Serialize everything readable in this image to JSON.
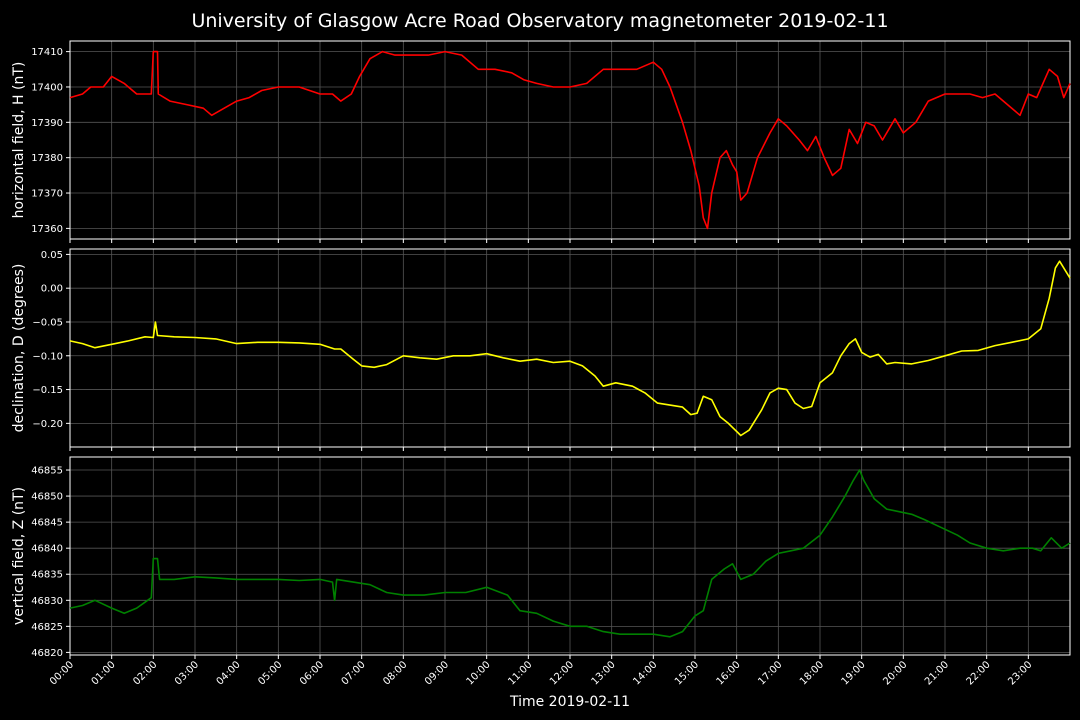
{
  "chart_data": {
    "type": "line",
    "title": "University of Glasgow Acre Road Observatory magnetometer 2019-02-11",
    "xlabel": "Time 2019-02-11",
    "x_tick_labels": [
      "00:00",
      "01:00",
      "02:00",
      "03:00",
      "04:00",
      "05:00",
      "06:00",
      "07:00",
      "08:00",
      "09:00",
      "10:00",
      "11:00",
      "12:00",
      "13:00",
      "14:00",
      "15:00",
      "16:00",
      "17:00",
      "18:00",
      "19:00",
      "20:00",
      "21:00",
      "22:00",
      "23:00"
    ],
    "xlim_hours": [
      0,
      24
    ],
    "grid": true,
    "panels": [
      {
        "name": "horizontal-field",
        "ylabel": "horizontal field, H (nT)",
        "color": "#ff0000",
        "ylim": [
          17357,
          17413
        ],
        "yticks": [
          17360,
          17370,
          17380,
          17390,
          17400,
          17410
        ],
        "ytick_labels": [
          "17360",
          "17370",
          "17380",
          "17390",
          "17400",
          "17410"
        ],
        "points": [
          [
            0,
            17397
          ],
          [
            0.3,
            17398
          ],
          [
            0.5,
            17400
          ],
          [
            0.8,
            17400
          ],
          [
            1.0,
            17403
          ],
          [
            1.3,
            17401
          ],
          [
            1.6,
            17398
          ],
          [
            1.95,
            17398
          ],
          [
            2.0,
            17410
          ],
          [
            2.1,
            17410
          ],
          [
            2.12,
            17398
          ],
          [
            2.4,
            17396
          ],
          [
            2.8,
            17395
          ],
          [
            3.2,
            17394
          ],
          [
            3.4,
            17392
          ],
          [
            3.7,
            17394
          ],
          [
            4.0,
            17396
          ],
          [
            4.3,
            17397
          ],
          [
            4.6,
            17399
          ],
          [
            5.0,
            17400
          ],
          [
            5.5,
            17400
          ],
          [
            6.0,
            17398
          ],
          [
            6.3,
            17398
          ],
          [
            6.5,
            17396
          ],
          [
            6.75,
            17398
          ],
          [
            6.95,
            17403
          ],
          [
            7.2,
            17408
          ],
          [
            7.5,
            17410
          ],
          [
            7.8,
            17409
          ],
          [
            8.2,
            17409
          ],
          [
            8.6,
            17409
          ],
          [
            9.0,
            17410
          ],
          [
            9.4,
            17409
          ],
          [
            9.8,
            17405
          ],
          [
            10.2,
            17405
          ],
          [
            10.6,
            17404
          ],
          [
            10.9,
            17402
          ],
          [
            11.2,
            17401
          ],
          [
            11.6,
            17400
          ],
          [
            12.0,
            17400
          ],
          [
            12.4,
            17401
          ],
          [
            12.8,
            17405
          ],
          [
            13.2,
            17405
          ],
          [
            13.6,
            17405
          ],
          [
            14.0,
            17407
          ],
          [
            14.2,
            17405
          ],
          [
            14.4,
            17400
          ],
          [
            14.7,
            17390
          ],
          [
            14.9,
            17382
          ],
          [
            15.1,
            17372
          ],
          [
            15.2,
            17363
          ],
          [
            15.3,
            17360
          ],
          [
            15.4,
            17370
          ],
          [
            15.6,
            17380
          ],
          [
            15.75,
            17382
          ],
          [
            15.9,
            17378
          ],
          [
            16.0,
            17376
          ],
          [
            16.1,
            17368
          ],
          [
            16.25,
            17370
          ],
          [
            16.5,
            17380
          ],
          [
            16.8,
            17387
          ],
          [
            17.0,
            17391
          ],
          [
            17.2,
            17389
          ],
          [
            17.5,
            17385
          ],
          [
            17.7,
            17382
          ],
          [
            17.9,
            17386
          ],
          [
            18.1,
            17380
          ],
          [
            18.3,
            17375
          ],
          [
            18.5,
            17377
          ],
          [
            18.7,
            17388
          ],
          [
            18.9,
            17384
          ],
          [
            19.1,
            17390
          ],
          [
            19.3,
            17389
          ],
          [
            19.5,
            17385
          ],
          [
            19.8,
            17391
          ],
          [
            20.0,
            17387
          ],
          [
            20.3,
            17390
          ],
          [
            20.6,
            17396
          ],
          [
            21.0,
            17398
          ],
          [
            21.3,
            17398
          ],
          [
            21.6,
            17398
          ],
          [
            21.9,
            17397
          ],
          [
            22.2,
            17398
          ],
          [
            22.5,
            17395
          ],
          [
            22.8,
            17392
          ],
          [
            23.0,
            17398
          ],
          [
            23.2,
            17397
          ],
          [
            23.5,
            17405
          ],
          [
            23.7,
            17403
          ],
          [
            23.85,
            17397
          ],
          [
            24.0,
            17401
          ]
        ]
      },
      {
        "name": "declination",
        "ylabel": "declination, D (degrees)",
        "color": "#ffff00",
        "ylim": [
          -0.235,
          0.058
        ],
        "yticks": [
          -0.2,
          -0.15,
          -0.1,
          -0.05,
          0.0,
          0.05
        ],
        "ytick_labels": [
          "−0.20",
          "−0.15",
          "−0.10",
          "−0.05",
          "0.00",
          "0.05"
        ],
        "points": [
          [
            0,
            -0.078
          ],
          [
            0.3,
            -0.082
          ],
          [
            0.6,
            -0.088
          ],
          [
            1.0,
            -0.083
          ],
          [
            1.4,
            -0.078
          ],
          [
            1.8,
            -0.072
          ],
          [
            2.0,
            -0.073
          ],
          [
            2.05,
            -0.05
          ],
          [
            2.1,
            -0.07
          ],
          [
            2.5,
            -0.072
          ],
          [
            3.0,
            -0.073
          ],
          [
            3.5,
            -0.075
          ],
          [
            4.0,
            -0.082
          ],
          [
            4.5,
            -0.08
          ],
          [
            5.0,
            -0.08
          ],
          [
            5.5,
            -0.081
          ],
          [
            6.0,
            -0.083
          ],
          [
            6.35,
            -0.09
          ],
          [
            6.5,
            -0.09
          ],
          [
            6.8,
            -0.105
          ],
          [
            7.0,
            -0.115
          ],
          [
            7.3,
            -0.117
          ],
          [
            7.6,
            -0.113
          ],
          [
            8.0,
            -0.1
          ],
          [
            8.4,
            -0.103
          ],
          [
            8.8,
            -0.105
          ],
          [
            9.2,
            -0.1
          ],
          [
            9.6,
            -0.1
          ],
          [
            10.0,
            -0.097
          ],
          [
            10.4,
            -0.103
          ],
          [
            10.8,
            -0.108
          ],
          [
            11.2,
            -0.105
          ],
          [
            11.6,
            -0.11
          ],
          [
            12.0,
            -0.108
          ],
          [
            12.3,
            -0.115
          ],
          [
            12.6,
            -0.13
          ],
          [
            12.8,
            -0.145
          ],
          [
            13.1,
            -0.14
          ],
          [
            13.5,
            -0.145
          ],
          [
            13.8,
            -0.155
          ],
          [
            14.1,
            -0.17
          ],
          [
            14.4,
            -0.173
          ],
          [
            14.7,
            -0.176
          ],
          [
            14.9,
            -0.187
          ],
          [
            15.05,
            -0.185
          ],
          [
            15.2,
            -0.16
          ],
          [
            15.4,
            -0.165
          ],
          [
            15.6,
            -0.19
          ],
          [
            15.8,
            -0.2
          ],
          [
            16.1,
            -0.218
          ],
          [
            16.3,
            -0.21
          ],
          [
            16.6,
            -0.18
          ],
          [
            16.8,
            -0.155
          ],
          [
            17.0,
            -0.148
          ],
          [
            17.2,
            -0.15
          ],
          [
            17.4,
            -0.17
          ],
          [
            17.6,
            -0.178
          ],
          [
            17.8,
            -0.175
          ],
          [
            18.0,
            -0.14
          ],
          [
            18.3,
            -0.125
          ],
          [
            18.5,
            -0.1
          ],
          [
            18.7,
            -0.082
          ],
          [
            18.85,
            -0.075
          ],
          [
            19.0,
            -0.095
          ],
          [
            19.2,
            -0.102
          ],
          [
            19.4,
            -0.098
          ],
          [
            19.6,
            -0.112
          ],
          [
            19.8,
            -0.11
          ],
          [
            20.2,
            -0.112
          ],
          [
            20.6,
            -0.107
          ],
          [
            21.0,
            -0.1
          ],
          [
            21.4,
            -0.093
          ],
          [
            21.8,
            -0.092
          ],
          [
            22.2,
            -0.085
          ],
          [
            22.6,
            -0.08
          ],
          [
            23.0,
            -0.075
          ],
          [
            23.3,
            -0.06
          ],
          [
            23.5,
            -0.015
          ],
          [
            23.65,
            0.03
          ],
          [
            23.75,
            0.04
          ],
          [
            23.9,
            0.025
          ],
          [
            24.0,
            0.015
          ]
        ]
      },
      {
        "name": "vertical-field",
        "ylabel": "vertical field, Z (nT)",
        "color": "#008000",
        "ylim": [
          46819.5,
          46857.5
        ],
        "yticks": [
          46820,
          46825,
          46830,
          46835,
          46840,
          46845,
          46850,
          46855
        ],
        "ytick_labels": [
          "46820",
          "46825",
          "46830",
          "46835",
          "46840",
          "46845",
          "46850",
          "46855"
        ],
        "points": [
          [
            0,
            46828.5
          ],
          [
            0.3,
            46829
          ],
          [
            0.6,
            46830
          ],
          [
            1.0,
            46828.5
          ],
          [
            1.3,
            46827.5
          ],
          [
            1.6,
            46828.5
          ],
          [
            1.95,
            46830.5
          ],
          [
            2.0,
            46838
          ],
          [
            2.1,
            46838
          ],
          [
            2.15,
            46834
          ],
          [
            2.5,
            46834
          ],
          [
            3.0,
            46834.5
          ],
          [
            3.5,
            46834.3
          ],
          [
            4.0,
            46834
          ],
          [
            4.5,
            46834
          ],
          [
            5.0,
            46834
          ],
          [
            5.5,
            46833.8
          ],
          [
            6.0,
            46834
          ],
          [
            6.3,
            46833.5
          ],
          [
            6.35,
            46830
          ],
          [
            6.4,
            46834
          ],
          [
            6.8,
            46833.5
          ],
          [
            7.2,
            46833
          ],
          [
            7.6,
            46831.5
          ],
          [
            8.0,
            46831
          ],
          [
            8.5,
            46831
          ],
          [
            9.0,
            46831.5
          ],
          [
            9.5,
            46831.5
          ],
          [
            10.0,
            46832.5
          ],
          [
            10.5,
            46831
          ],
          [
            10.8,
            46828
          ],
          [
            11.2,
            46827.5
          ],
          [
            11.6,
            46826
          ],
          [
            12.0,
            46825
          ],
          [
            12.4,
            46825
          ],
          [
            12.8,
            46824
          ],
          [
            13.2,
            46823.5
          ],
          [
            13.6,
            46823.5
          ],
          [
            14.0,
            46823.5
          ],
          [
            14.4,
            46823
          ],
          [
            14.7,
            46824
          ],
          [
            15.0,
            46827
          ],
          [
            15.2,
            46828
          ],
          [
            15.4,
            46834
          ],
          [
            15.7,
            46836
          ],
          [
            15.9,
            46837
          ],
          [
            16.1,
            46834
          ],
          [
            16.4,
            46835
          ],
          [
            16.7,
            46837.5
          ],
          [
            17.0,
            46839
          ],
          [
            17.3,
            46839.5
          ],
          [
            17.6,
            46840
          ],
          [
            18.0,
            46842.5
          ],
          [
            18.3,
            46846
          ],
          [
            18.6,
            46850
          ],
          [
            18.8,
            46853
          ],
          [
            18.95,
            46855
          ],
          [
            19.05,
            46853
          ],
          [
            19.3,
            46849.5
          ],
          [
            19.6,
            46847.5
          ],
          [
            19.9,
            46847
          ],
          [
            20.2,
            46846.5
          ],
          [
            20.5,
            46845.5
          ],
          [
            20.9,
            46844
          ],
          [
            21.3,
            46842.5
          ],
          [
            21.6,
            46841
          ],
          [
            22.0,
            46840
          ],
          [
            22.4,
            46839.5
          ],
          [
            22.8,
            46840
          ],
          [
            23.1,
            46840
          ],
          [
            23.3,
            46839.5
          ],
          [
            23.55,
            46842
          ],
          [
            23.8,
            46840
          ],
          [
            24.0,
            46841
          ]
        ]
      }
    ]
  }
}
